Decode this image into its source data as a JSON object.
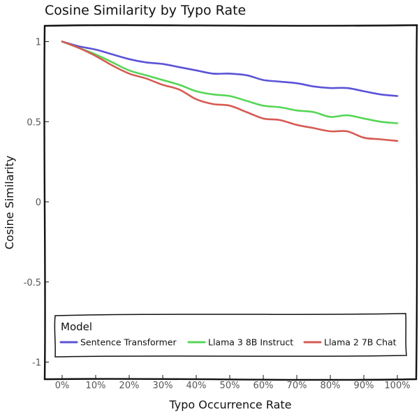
{
  "chart_data": {
    "type": "line",
    "title": "Cosine Similarity by Typo Rate",
    "xlabel": "Typo Occurrence Rate",
    "ylabel": "Cosine Similarity",
    "x": [
      0,
      5,
      10,
      15,
      20,
      25,
      30,
      35,
      40,
      45,
      50,
      55,
      60,
      65,
      70,
      75,
      80,
      85,
      90,
      95,
      100
    ],
    "x_tick_labels": [
      "0%",
      "10%",
      "20%",
      "30%",
      "40%",
      "50%",
      "60%",
      "70%",
      "80%",
      "90%",
      "100%"
    ],
    "y_tick_labels": [
      "1",
      "0.5",
      "0",
      "-0.5",
      "-1"
    ],
    "ylim": [
      -1.05,
      1.05
    ],
    "grid": false,
    "legend": {
      "title": "Model",
      "placement": "bottom"
    },
    "series": [
      {
        "name": "Sentence Transformer",
        "color": "#5b53d6",
        "values": [
          1.0,
          0.97,
          0.95,
          0.92,
          0.89,
          0.87,
          0.86,
          0.84,
          0.82,
          0.8,
          0.8,
          0.79,
          0.76,
          0.75,
          0.74,
          0.72,
          0.71,
          0.71,
          0.69,
          0.67,
          0.66
        ]
      },
      {
        "name": "Llama 3 8B Instruct",
        "color": "#55d655",
        "values": [
          1.0,
          0.96,
          0.92,
          0.87,
          0.82,
          0.79,
          0.76,
          0.73,
          0.69,
          0.67,
          0.66,
          0.63,
          0.6,
          0.59,
          0.57,
          0.56,
          0.53,
          0.54,
          0.52,
          0.5,
          0.49
        ]
      },
      {
        "name": "Llama 2 7B Chat",
        "color": "#d65b53",
        "values": [
          1.0,
          0.96,
          0.91,
          0.85,
          0.8,
          0.77,
          0.73,
          0.7,
          0.64,
          0.61,
          0.6,
          0.56,
          0.52,
          0.51,
          0.48,
          0.46,
          0.44,
          0.44,
          0.4,
          0.39,
          0.38
        ]
      }
    ]
  }
}
